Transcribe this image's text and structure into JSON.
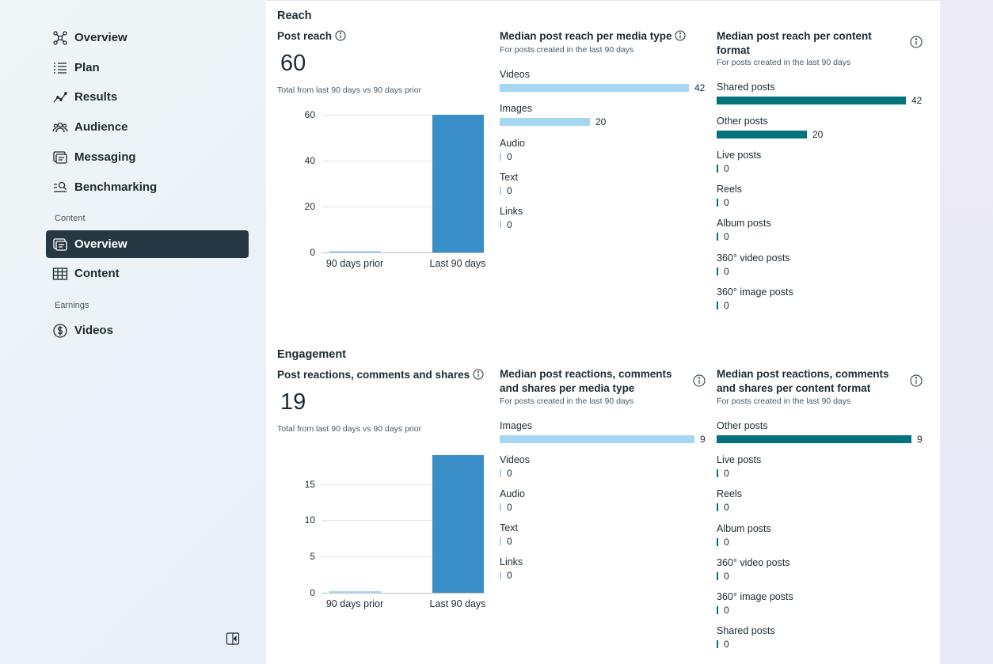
{
  "sidebar": {
    "items": [
      {
        "label": "Overview",
        "icon": "nodes-icon"
      },
      {
        "label": "Plan",
        "icon": "list-icon"
      },
      {
        "label": "Results",
        "icon": "trend-icon"
      },
      {
        "label": "Audience",
        "icon": "people-icon"
      },
      {
        "label": "Messaging",
        "icon": "messaging-icon"
      },
      {
        "label": "Benchmarking",
        "icon": "benchmark-icon"
      }
    ],
    "content_section": "Content",
    "content_items": [
      {
        "label": "Overview",
        "icon": "content-overview-icon",
        "active": true
      },
      {
        "label": "Content",
        "icon": "table-icon"
      }
    ],
    "earnings_section": "Earnings",
    "earnings_items": [
      {
        "label": "Videos",
        "icon": "dollar-icon"
      }
    ]
  },
  "reach": {
    "section_title": "Reach",
    "post_reach": {
      "title": "Post reach",
      "value": "60",
      "subtitle": "Total from last 90 days vs 90 days prior"
    },
    "media_type": {
      "title": "Median post reach per media type",
      "subtitle": "For posts created in the last 90 days",
      "rows": [
        {
          "label": "Videos",
          "value": "42"
        },
        {
          "label": "Images",
          "value": "20"
        },
        {
          "label": "Audio",
          "value": "0"
        },
        {
          "label": "Text",
          "value": "0"
        },
        {
          "label": "Links",
          "value": "0"
        }
      ]
    },
    "content_format": {
      "title": "Median post reach per content format",
      "subtitle": "For posts created in the last 90 days",
      "rows": [
        {
          "label": "Shared posts",
          "value": "42"
        },
        {
          "label": "Other posts",
          "value": "20"
        },
        {
          "label": "Live posts",
          "value": "0"
        },
        {
          "label": "Reels",
          "value": "0"
        },
        {
          "label": "Album posts",
          "value": "0"
        },
        {
          "label": "360° video posts",
          "value": "0"
        },
        {
          "label": "360° image posts",
          "value": "0"
        }
      ]
    }
  },
  "engagement": {
    "section_title": "Engagement",
    "post_reactions": {
      "title": "Post reactions, comments and shares",
      "value": "19",
      "subtitle": "Total from last 90 days vs 90 days prior"
    },
    "media_type": {
      "title": "Median post reactions, comments and shares per media type",
      "subtitle": "For posts created in the last 90 days",
      "rows": [
        {
          "label": "Images",
          "value": "9"
        },
        {
          "label": "Videos",
          "value": "0"
        },
        {
          "label": "Audio",
          "value": "0"
        },
        {
          "label": "Text",
          "value": "0"
        },
        {
          "label": "Links",
          "value": "0"
        }
      ]
    },
    "content_format": {
      "title": "Median post reactions, comments and shares per content format",
      "subtitle": "For posts created in the last 90 days",
      "rows": [
        {
          "label": "Other posts",
          "value": "9"
        },
        {
          "label": "Live posts",
          "value": "0"
        },
        {
          "label": "Reels",
          "value": "0"
        },
        {
          "label": "Album posts",
          "value": "0"
        },
        {
          "label": "360° video posts",
          "value": "0"
        },
        {
          "label": "360° image posts",
          "value": "0"
        },
        {
          "label": "Shared posts",
          "value": "0"
        }
      ]
    }
  },
  "chart_data": [
    {
      "type": "bar",
      "title": "Post reach",
      "categories": [
        "90 days prior",
        "Last 90 days"
      ],
      "values": [
        0,
        60
      ],
      "ylim": [
        0,
        60
      ],
      "yticks": [
        "0",
        "20",
        "40",
        "60"
      ]
    },
    {
      "type": "bar",
      "title": "Post reactions, comments and shares",
      "categories": [
        "90 days prior",
        "Last 90 days"
      ],
      "values": [
        0,
        19
      ],
      "ylim": [
        0,
        19
      ],
      "yticks": [
        "0",
        "5",
        "10",
        "15"
      ]
    }
  ],
  "colors": {
    "light_bar": "#a6d7f2",
    "teal_bar": "#03737b",
    "chart_bar": "#3b8fc9",
    "active_nav": "#263843"
  }
}
